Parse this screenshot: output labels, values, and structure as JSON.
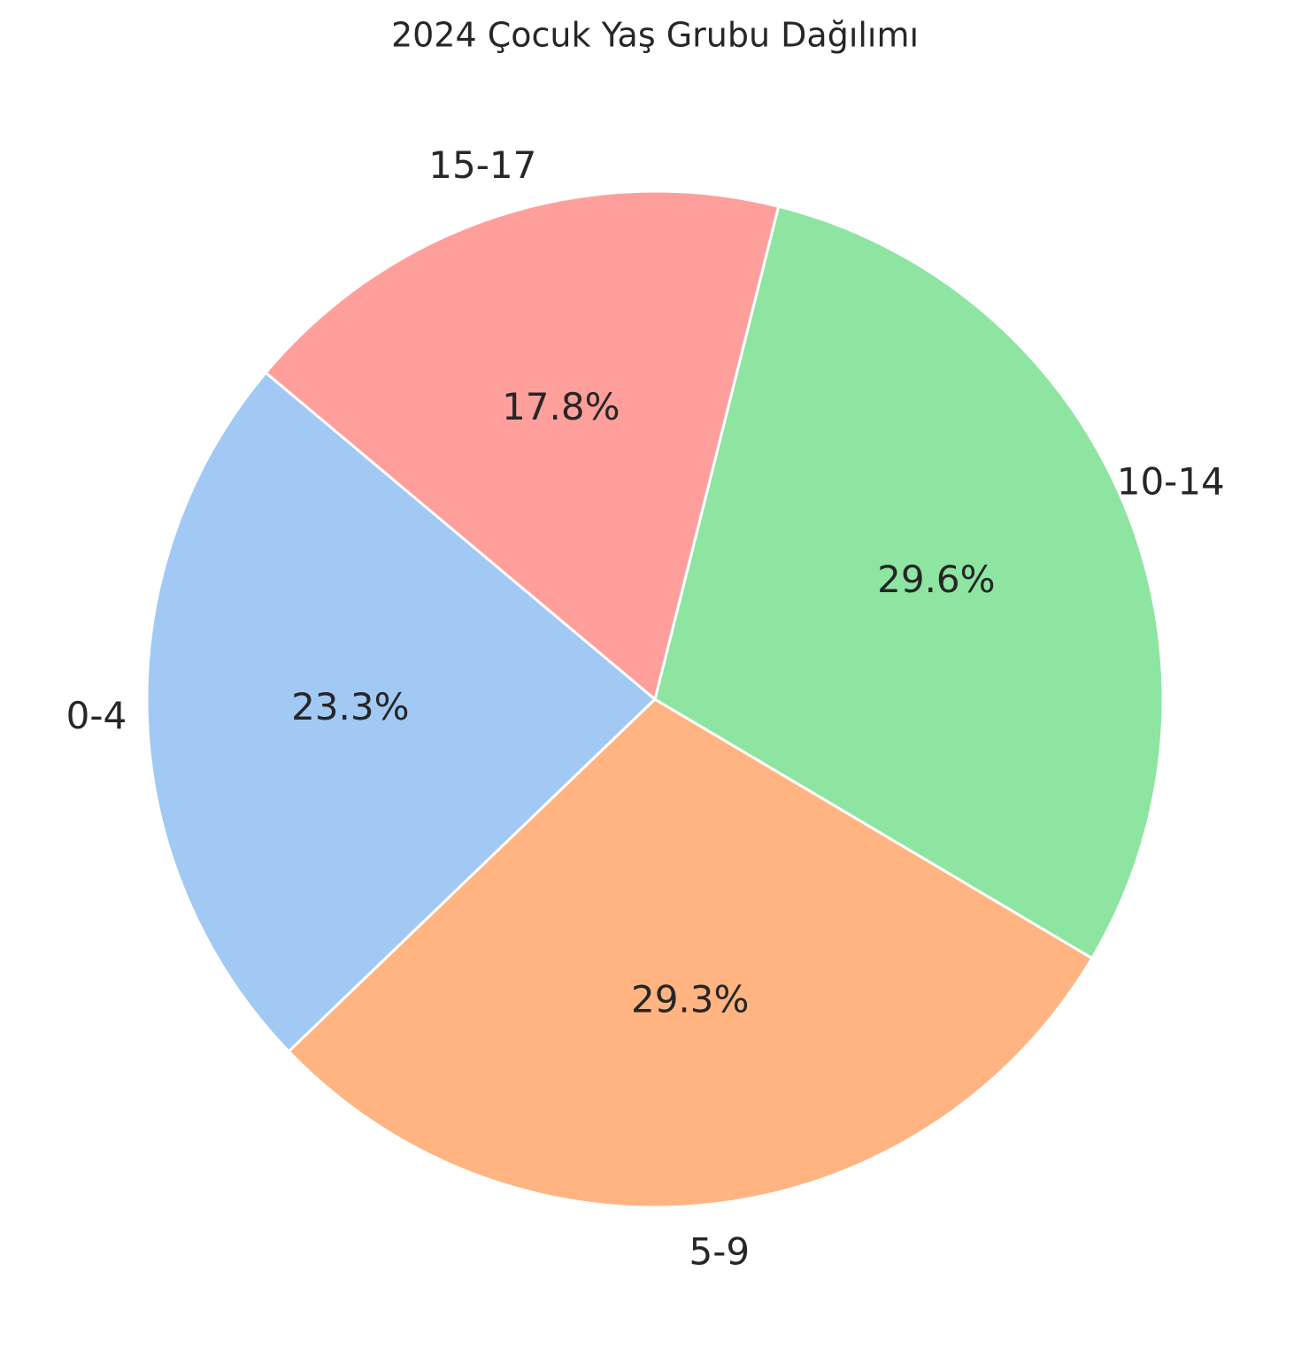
{
  "chart_data": {
    "type": "pie",
    "title": "2024 Çocuk Yaş Grubu Dağılımı",
    "categories": [
      "0-4",
      "5-9",
      "10-14",
      "15-17"
    ],
    "values": [
      23.3,
      29.3,
      29.6,
      17.8
    ],
    "value_labels": [
      "23.3%",
      "29.3%",
      "29.6%",
      "17.8%"
    ],
    "colors": [
      "#a1c9f4",
      "#ffb482",
      "#8de5a1",
      "#ff9f9b"
    ],
    "start_angle": 140,
    "direction": "counterclockwise"
  }
}
